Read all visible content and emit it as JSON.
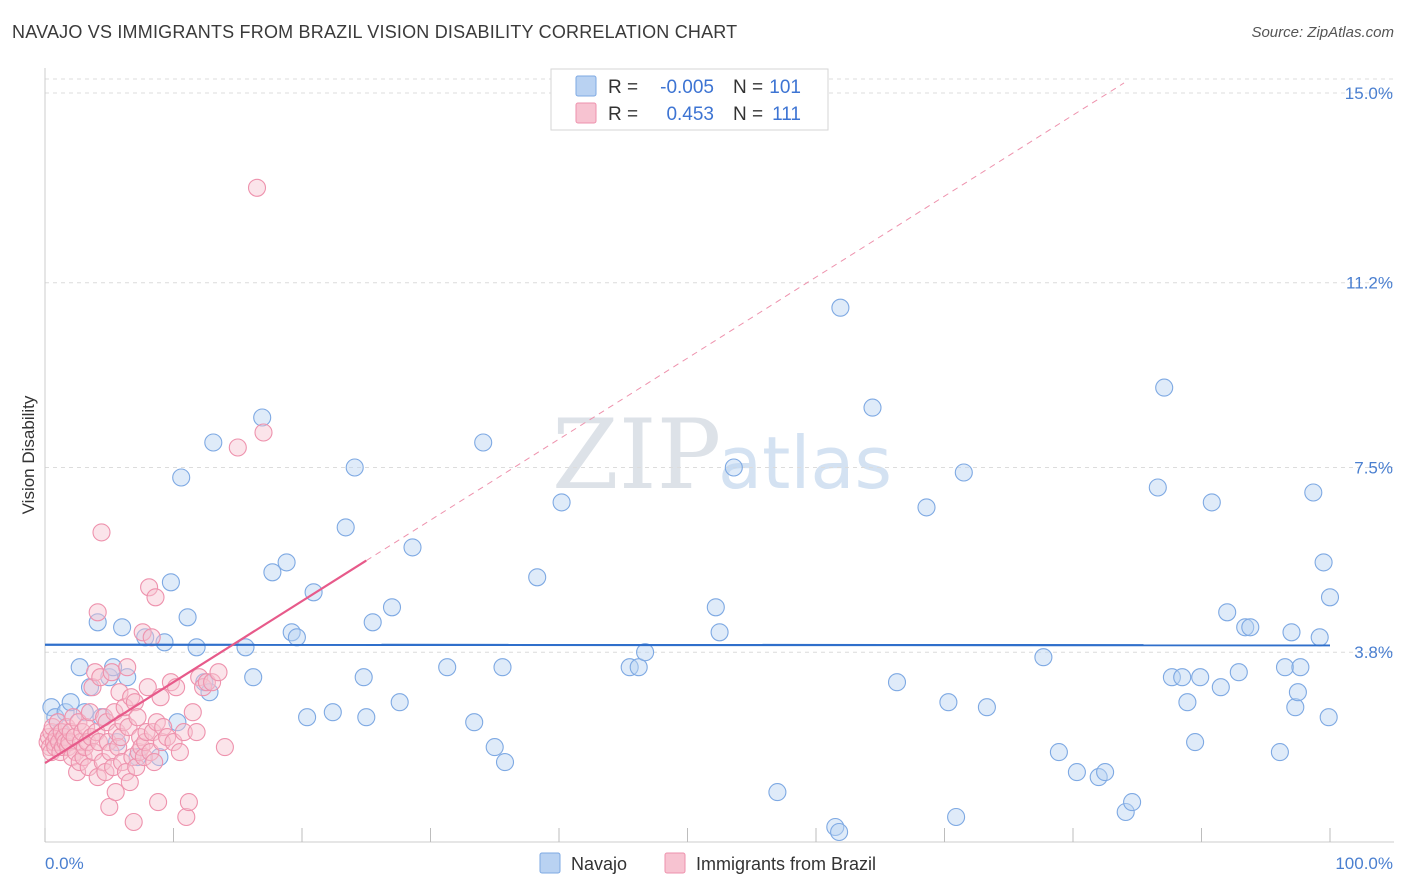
{
  "title": "NAVAJO VS IMMIGRANTS FROM BRAZIL VISION DISABILITY CORRELATION CHART",
  "source": "Source: ZipAtlas.com",
  "watermark": {
    "part1": "ZIP",
    "part2": "atlas"
  },
  "colors": {
    "navajo_fill": "#b9d2f2",
    "navajo_stroke": "#7ea9e3",
    "navajo_line": "#2f6fcb",
    "brazil_fill": "#f7c3d1",
    "brazil_stroke": "#ee92ad",
    "brazil_line": "#e75a8a",
    "grid": "#dcdcdc",
    "tick_text": "#4a7fd0"
  },
  "legend": {
    "rows": [
      {
        "r_label": "R =",
        "r_value": "-0.005",
        "n_label": "N =",
        "n_value": "101"
      },
      {
        "r_label": "R =",
        "r_value": "0.453",
        "n_label": "N =",
        "n_value": "111"
      }
    ]
  },
  "chart_data": {
    "type": "scatter",
    "title": "NAVAJO VS IMMIGRANTS FROM BRAZIL VISION DISABILITY CORRELATION CHART",
    "xlabel": "",
    "ylabel": "Vision Disability",
    "xlim": [
      0,
      100
    ],
    "ylim": [
      0,
      15.5
    ],
    "x_tick_labels": [
      "0.0%",
      "100.0%"
    ],
    "y_ticks": [
      {
        "value": 3.8,
        "label": "3.8%"
      },
      {
        "value": 7.5,
        "label": "7.5%"
      },
      {
        "value": 11.2,
        "label": "11.2%"
      },
      {
        "value": 15.0,
        "label": "15.0%"
      }
    ],
    "grid": true,
    "legend_position": "bottom",
    "series": [
      {
        "name": "Navajo",
        "r": -0.005,
        "n": 101,
        "trend": {
          "x0": 0,
          "y0": 3.95,
          "x1": 100,
          "y1": 3.94,
          "dashed_extension": false
        },
        "points": [
          [
            0.5,
            2.7
          ],
          [
            0.8,
            2.5
          ],
          [
            1.2,
            2.2
          ],
          [
            1.6,
            2.6
          ],
          [
            2.0,
            2.8
          ],
          [
            2.7,
            3.5
          ],
          [
            3.1,
            2.6
          ],
          [
            3.5,
            3.1
          ],
          [
            4.1,
            4.4
          ],
          [
            4.4,
            2.5
          ],
          [
            5.0,
            3.3
          ],
          [
            5.3,
            3.5
          ],
          [
            5.6,
            2.0
          ],
          [
            6.0,
            4.3
          ],
          [
            6.4,
            3.3
          ],
          [
            7.2,
            1.7
          ],
          [
            7.8,
            4.1
          ],
          [
            8.9,
            1.7
          ],
          [
            9.3,
            4.0
          ],
          [
            9.8,
            5.2
          ],
          [
            10.3,
            2.4
          ],
          [
            10.6,
            7.3
          ],
          [
            11.1,
            4.5
          ],
          [
            11.8,
            3.9
          ],
          [
            12.4,
            3.2
          ],
          [
            12.8,
            3.0
          ],
          [
            13.1,
            8.0
          ],
          [
            15.6,
            3.9
          ],
          [
            16.2,
            3.3
          ],
          [
            16.9,
            8.5
          ],
          [
            17.7,
            5.4
          ],
          [
            18.8,
            5.6
          ],
          [
            19.2,
            4.2
          ],
          [
            19.6,
            4.1
          ],
          [
            20.4,
            2.5
          ],
          [
            20.9,
            5.0
          ],
          [
            22.4,
            2.6
          ],
          [
            23.4,
            6.3
          ],
          [
            24.1,
            7.5
          ],
          [
            24.8,
            3.3
          ],
          [
            25.0,
            2.5
          ],
          [
            25.5,
            4.4
          ],
          [
            27.0,
            4.7
          ],
          [
            27.6,
            2.8
          ],
          [
            28.6,
            5.9
          ],
          [
            31.3,
            3.5
          ],
          [
            33.4,
            2.4
          ],
          [
            34.1,
            8.0
          ],
          [
            35.0,
            1.9
          ],
          [
            35.6,
            3.5
          ],
          [
            35.8,
            1.6
          ],
          [
            38.3,
            5.3
          ],
          [
            40.2,
            6.8
          ],
          [
            45.5,
            3.5
          ],
          [
            46.2,
            3.5
          ],
          [
            46.7,
            3.8
          ],
          [
            52.2,
            4.7
          ],
          [
            52.5,
            4.2
          ],
          [
            53.6,
            7.5
          ],
          [
            57.0,
            1.0
          ],
          [
            61.9,
            10.7
          ],
          [
            61.5,
            0.3
          ],
          [
            61.8,
            0.2
          ],
          [
            64.4,
            8.7
          ],
          [
            66.3,
            3.2
          ],
          [
            68.6,
            6.7
          ],
          [
            70.3,
            2.8
          ],
          [
            70.9,
            0.5
          ],
          [
            71.5,
            7.4
          ],
          [
            73.3,
            2.7
          ],
          [
            77.7,
            3.7
          ],
          [
            78.9,
            1.8
          ],
          [
            80.3,
            1.4
          ],
          [
            82.0,
            1.3
          ],
          [
            82.5,
            1.4
          ],
          [
            84.1,
            0.6
          ],
          [
            84.6,
            0.8
          ],
          [
            86.6,
            7.1
          ],
          [
            87.1,
            9.1
          ],
          [
            87.7,
            3.3
          ],
          [
            88.5,
            3.3
          ],
          [
            88.9,
            2.8
          ],
          [
            89.5,
            2.0
          ],
          [
            89.9,
            3.3
          ],
          [
            90.8,
            6.8
          ],
          [
            91.5,
            3.1
          ],
          [
            92.0,
            4.6
          ],
          [
            92.9,
            3.4
          ],
          [
            93.4,
            4.3
          ],
          [
            93.8,
            4.3
          ],
          [
            96.1,
            1.8
          ],
          [
            96.5,
            3.5
          ],
          [
            97.7,
            3.5
          ],
          [
            97.3,
            2.7
          ],
          [
            97.0,
            4.2
          ],
          [
            97.5,
            3.0
          ],
          [
            98.7,
            7.0
          ],
          [
            99.5,
            5.6
          ],
          [
            99.2,
            4.1
          ],
          [
            99.9,
            2.5
          ],
          [
            100.0,
            4.9
          ]
        ]
      },
      {
        "name": "Immigrants from Brazil",
        "r": 0.453,
        "n": 111,
        "trend": {
          "x0": 0,
          "y0": 1.58,
          "x1": 100,
          "y1": 17.8,
          "solid_until_x": 25
        },
        "points": [
          [
            0.2,
            2.0
          ],
          [
            0.3,
            2.1
          ],
          [
            0.4,
            1.9
          ],
          [
            0.5,
            2.2
          ],
          [
            0.5,
            1.8
          ],
          [
            0.6,
            2.3
          ],
          [
            0.7,
            2.0
          ],
          [
            0.8,
            1.9
          ],
          [
            0.9,
            2.1
          ],
          [
            1.0,
            2.4
          ],
          [
            1.1,
            2.0
          ],
          [
            1.2,
            1.8
          ],
          [
            1.3,
            2.2
          ],
          [
            1.4,
            1.9
          ],
          [
            1.5,
            2.1
          ],
          [
            1.6,
            2.0
          ],
          [
            1.7,
            2.3
          ],
          [
            1.8,
            1.9
          ],
          [
            1.9,
            2.0
          ],
          [
            2.0,
            2.2
          ],
          [
            2.1,
            1.7
          ],
          [
            2.2,
            2.5
          ],
          [
            2.3,
            2.1
          ],
          [
            2.4,
            1.8
          ],
          [
            2.5,
            1.4
          ],
          [
            2.6,
            2.4
          ],
          [
            2.7,
            1.6
          ],
          [
            2.8,
            2.0
          ],
          [
            2.9,
            2.2
          ],
          [
            3.0,
            1.7
          ],
          [
            3.1,
            1.9
          ],
          [
            3.2,
            2.3
          ],
          [
            3.3,
            2.0
          ],
          [
            3.4,
            1.5
          ],
          [
            3.5,
            2.6
          ],
          [
            3.6,
            2.1
          ],
          [
            3.7,
            3.1
          ],
          [
            3.8,
            1.8
          ],
          [
            3.9,
            3.4
          ],
          [
            4.0,
            2.2
          ],
          [
            4.1,
            1.3
          ],
          [
            4.2,
            2.0
          ],
          [
            4.3,
            3.3
          ],
          [
            4.4,
            6.2
          ],
          [
            4.5,
            1.6
          ],
          [
            4.6,
            2.5
          ],
          [
            4.7,
            1.4
          ],
          [
            4.8,
            2.4
          ],
          [
            4.9,
            2.0
          ],
          [
            5.0,
            0.7
          ],
          [
            5.1,
            1.8
          ],
          [
            5.2,
            3.4
          ],
          [
            5.3,
            1.5
          ],
          [
            5.4,
            2.6
          ],
          [
            5.5,
            1.0
          ],
          [
            5.6,
            2.2
          ],
          [
            5.7,
            1.9
          ],
          [
            5.8,
            3.0
          ],
          [
            5.9,
            2.1
          ],
          [
            6.0,
            1.6
          ],
          [
            6.1,
            2.4
          ],
          [
            6.2,
            2.7
          ],
          [
            6.3,
            1.4
          ],
          [
            6.4,
            3.5
          ],
          [
            6.5,
            2.3
          ],
          [
            6.6,
            1.2
          ],
          [
            6.7,
            2.9
          ],
          [
            6.8,
            1.7
          ],
          [
            6.9,
            0.4
          ],
          [
            7.0,
            2.8
          ],
          [
            7.1,
            1.5
          ],
          [
            7.2,
            2.5
          ],
          [
            7.3,
            1.8
          ],
          [
            7.4,
            2.1
          ],
          [
            7.5,
            1.9
          ],
          [
            7.6,
            4.2
          ],
          [
            7.7,
            1.7
          ],
          [
            7.8,
            2.0
          ],
          [
            7.9,
            2.2
          ],
          [
            8.0,
            3.1
          ],
          [
            8.1,
            5.1
          ],
          [
            8.2,
            1.8
          ],
          [
            8.3,
            4.1
          ],
          [
            8.4,
            2.2
          ],
          [
            8.5,
            1.6
          ],
          [
            8.6,
            4.9
          ],
          [
            8.7,
            2.4
          ],
          [
            8.8,
            0.8
          ],
          [
            9.0,
            2.9
          ],
          [
            9.1,
            2.0
          ],
          [
            9.2,
            2.3
          ],
          [
            9.5,
            2.1
          ],
          [
            9.8,
            3.2
          ],
          [
            10.0,
            2.0
          ],
          [
            10.2,
            3.1
          ],
          [
            10.5,
            1.8
          ],
          [
            10.8,
            2.2
          ],
          [
            11.0,
            0.5
          ],
          [
            11.2,
            0.8
          ],
          [
            11.5,
            2.6
          ],
          [
            11.8,
            2.2
          ],
          [
            12.0,
            3.3
          ],
          [
            12.3,
            3.1
          ],
          [
            12.6,
            3.2
          ],
          [
            13.0,
            3.2
          ],
          [
            13.5,
            3.4
          ],
          [
            14.0,
            1.9
          ],
          [
            15.0,
            7.9
          ],
          [
            16.5,
            13.1
          ],
          [
            17.0,
            8.2
          ],
          [
            4.1,
            4.6
          ]
        ]
      }
    ]
  },
  "bottom_legend": {
    "items": [
      {
        "label": "Navajo"
      },
      {
        "label": "Immigrants from Brazil"
      }
    ]
  }
}
